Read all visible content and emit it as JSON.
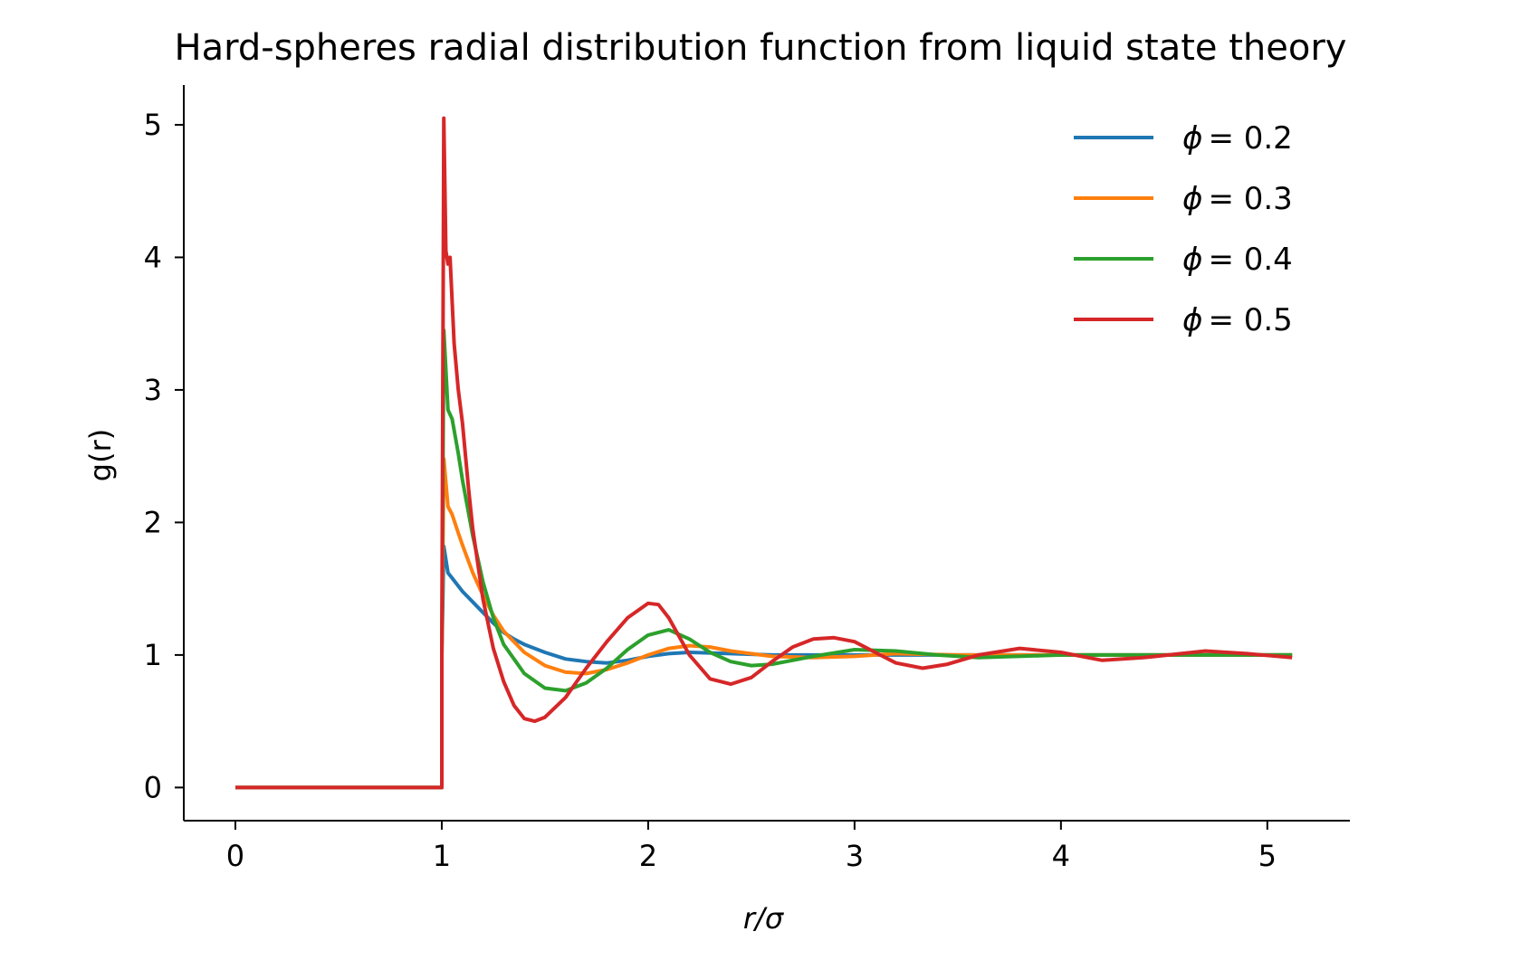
{
  "chart_data": {
    "type": "line",
    "title": "Hard-spheres radial distribution function from liquid state theory",
    "xlabel": "r/σ",
    "ylabel": "g(r)",
    "xlim": [
      -0.25,
      5.4
    ],
    "ylim": [
      -0.25,
      5.3
    ],
    "xticks": [
      0,
      1,
      2,
      3,
      4,
      5
    ],
    "yticks": [
      0,
      1,
      2,
      3,
      4,
      5
    ],
    "grid": false,
    "legend_position": "top-right",
    "series": [
      {
        "name": "ϕ = 0.2",
        "legend_symbol": "ϕ",
        "legend_value": "= 0.2",
        "color": "#1f77b4",
        "x": [
          0,
          1.0,
          1.0,
          1.01,
          1.03,
          1.05,
          1.08,
          1.1,
          1.15,
          1.2,
          1.25,
          1.3,
          1.35,
          1.4,
          1.5,
          1.6,
          1.7,
          1.8,
          1.9,
          2.0,
          2.1,
          2.2,
          2.4,
          2.6,
          2.8,
          3.0,
          3.5,
          4.0,
          4.5,
          5.12
        ],
        "y": [
          0,
          0,
          1.0,
          1.82,
          1.62,
          1.58,
          1.52,
          1.48,
          1.4,
          1.32,
          1.24,
          1.17,
          1.12,
          1.08,
          1.02,
          0.97,
          0.95,
          0.94,
          0.96,
          0.99,
          1.01,
          1.02,
          1.01,
          1.0,
          1.0,
          1.0,
          1.0,
          1.0,
          1.0,
          1.0
        ]
      },
      {
        "name": "ϕ = 0.3",
        "legend_symbol": "ϕ",
        "legend_value": "= 0.3",
        "color": "#ff7f0e",
        "x": [
          0,
          1.0,
          1.0,
          1.01,
          1.03,
          1.05,
          1.08,
          1.1,
          1.15,
          1.2,
          1.25,
          1.3,
          1.4,
          1.5,
          1.6,
          1.7,
          1.8,
          1.9,
          2.0,
          2.1,
          2.2,
          2.3,
          2.4,
          2.6,
          2.8,
          3.0,
          3.2,
          3.5,
          4.0,
          4.5,
          5.12
        ],
        "y": [
          0,
          0,
          1.0,
          2.48,
          2.12,
          2.06,
          1.92,
          1.83,
          1.62,
          1.45,
          1.3,
          1.18,
          1.02,
          0.92,
          0.87,
          0.86,
          0.89,
          0.94,
          1.0,
          1.05,
          1.07,
          1.06,
          1.03,
          0.99,
          0.98,
          0.99,
          1.01,
          1.0,
          1.0,
          1.0,
          1.0
        ]
      },
      {
        "name": "ϕ = 0.4",
        "legend_symbol": "ϕ",
        "legend_value": "= 0.4",
        "color": "#2ca02c",
        "x": [
          0,
          1.0,
          1.0,
          1.01,
          1.03,
          1.05,
          1.08,
          1.1,
          1.15,
          1.2,
          1.25,
          1.3,
          1.4,
          1.5,
          1.6,
          1.7,
          1.8,
          1.9,
          2.0,
          2.1,
          2.2,
          2.3,
          2.4,
          2.5,
          2.6,
          2.8,
          3.0,
          3.2,
          3.4,
          3.6,
          4.0,
          4.5,
          5.12
        ],
        "y": [
          0,
          0,
          1.0,
          3.45,
          2.85,
          2.78,
          2.52,
          2.32,
          1.9,
          1.55,
          1.28,
          1.08,
          0.86,
          0.75,
          0.73,
          0.79,
          0.9,
          1.04,
          1.15,
          1.19,
          1.12,
          1.02,
          0.95,
          0.92,
          0.93,
          0.99,
          1.04,
          1.03,
          1.0,
          0.98,
          1.0,
          1.0,
          1.0
        ]
      },
      {
        "name": "ϕ = 0.5",
        "legend_symbol": "ϕ",
        "legend_value": "= 0.5",
        "color": "#d62728",
        "x": [
          0,
          1.0,
          1.0,
          1.01,
          1.02,
          1.03,
          1.04,
          1.06,
          1.08,
          1.1,
          1.13,
          1.15,
          1.2,
          1.25,
          1.3,
          1.35,
          1.4,
          1.45,
          1.5,
          1.6,
          1.7,
          1.8,
          1.9,
          2.0,
          2.05,
          2.1,
          2.2,
          2.3,
          2.4,
          2.5,
          2.6,
          2.7,
          2.8,
          2.9,
          3.0,
          3.1,
          3.2,
          3.33,
          3.45,
          3.6,
          3.8,
          4.0,
          4.2,
          4.4,
          4.7,
          4.9,
          5.12
        ],
        "y": [
          0,
          0,
          1.0,
          5.05,
          4.05,
          3.95,
          4.0,
          3.35,
          3.0,
          2.75,
          2.25,
          1.95,
          1.42,
          1.05,
          0.8,
          0.62,
          0.52,
          0.5,
          0.53,
          0.68,
          0.9,
          1.1,
          1.28,
          1.39,
          1.38,
          1.28,
          1.0,
          0.82,
          0.78,
          0.83,
          0.95,
          1.06,
          1.12,
          1.13,
          1.1,
          1.02,
          0.94,
          0.9,
          0.93,
          1.0,
          1.05,
          1.02,
          0.96,
          0.98,
          1.03,
          1.01,
          0.98
        ]
      }
    ]
  }
}
